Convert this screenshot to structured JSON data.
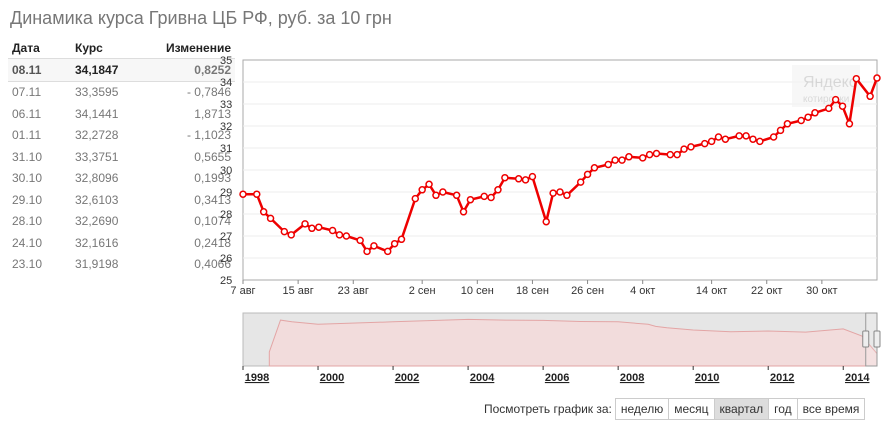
{
  "title": "Динамика курса Гривна ЦБ РФ, руб. за 10 грн",
  "table": {
    "headers": [
      "Дата",
      "Курс",
      "Изменение"
    ],
    "rows": [
      {
        "date": "08.11",
        "rate": "34,1847",
        "change": "0,8252"
      },
      {
        "date": "07.11",
        "rate": "33,3595",
        "change": "- 0,7846"
      },
      {
        "date": "06.11",
        "rate": "34,1441",
        "change": "1,8713"
      },
      {
        "date": "01.11",
        "rate": "32,2728",
        "change": "- 1,1023"
      },
      {
        "date": "31.10",
        "rate": "33,3751",
        "change": "0,5655"
      },
      {
        "date": "30.10",
        "rate": "32,8096",
        "change": "0,1993"
      },
      {
        "date": "29.10",
        "rate": "32,6103",
        "change": "0,3413"
      },
      {
        "date": "28.10",
        "rate": "32,2690",
        "change": "0,1074"
      },
      {
        "date": "24.10",
        "rate": "32,1616",
        "change": "0,2418"
      },
      {
        "date": "23.10",
        "rate": "31,9198",
        "change": "0,4066"
      }
    ]
  },
  "watermark": {
    "line1": "Яндекс",
    "line2": "котировки"
  },
  "period_bar": {
    "label": "Посмотреть график за:",
    "buttons": [
      "неделю",
      "месяц",
      "квартал",
      "год",
      "все время"
    ],
    "active": "квартал"
  },
  "colors": {
    "line": "#ee0000",
    "overview_fill": "#f2dcdc",
    "overview_line": "#e3a5a5"
  },
  "chart_data": [
    {
      "type": "line",
      "ylim": [
        25,
        35
      ],
      "yticks": [
        25,
        26,
        27,
        28,
        29,
        30,
        31,
        32,
        33,
        34,
        35
      ],
      "xlim": [
        0,
        92
      ],
      "xticks": [
        {
          "x": 0,
          "label": "7 авг"
        },
        {
          "x": 8,
          "label": "15 авг"
        },
        {
          "x": 16,
          "label": "23 авг"
        },
        {
          "x": 26,
          "label": "2 сен"
        },
        {
          "x": 34,
          "label": "10 сен"
        },
        {
          "x": 42,
          "label": "18 сен"
        },
        {
          "x": 50,
          "label": "26 сен"
        },
        {
          "x": 58,
          "label": "4 окт"
        },
        {
          "x": 68,
          "label": "14 окт"
        },
        {
          "x": 76,
          "label": "22 окт"
        },
        {
          "x": 84,
          "label": "30 окт"
        }
      ],
      "series": [
        {
          "x": [
            0,
            2,
            3,
            4,
            6,
            7,
            9,
            10,
            11,
            13,
            14,
            15,
            17,
            18,
            19,
            21,
            22,
            23,
            25,
            26,
            27,
            28,
            29,
            31,
            32,
            33,
            35,
            36,
            37,
            38,
            40,
            41,
            42,
            44,
            45,
            46,
            47,
            49,
            50,
            51,
            53,
            54,
            55,
            56,
            58,
            59,
            60,
            62,
            63,
            64,
            65,
            67,
            68,
            69,
            70,
            72,
            73,
            74,
            75,
            77,
            78,
            79,
            81,
            82,
            83,
            85,
            86,
            87,
            88,
            89,
            91,
            92
          ],
          "y": [
            28.9,
            28.9,
            28.1,
            27.8,
            27.2,
            27.05,
            27.55,
            27.35,
            27.4,
            27.25,
            27.05,
            27.0,
            26.8,
            26.3,
            26.55,
            26.3,
            26.65,
            26.85,
            28.7,
            29.1,
            29.35,
            28.85,
            29.0,
            28.85,
            28.1,
            28.65,
            28.8,
            28.75,
            29.1,
            29.65,
            29.6,
            29.55,
            29.7,
            27.65,
            28.95,
            29.0,
            28.85,
            29.45,
            29.8,
            30.1,
            30.25,
            30.45,
            30.45,
            30.6,
            30.55,
            30.7,
            30.75,
            30.7,
            30.7,
            30.95,
            31.05,
            31.2,
            31.3,
            31.5,
            31.4,
            31.55,
            31.55,
            31.4,
            31.3,
            31.5,
            31.8,
            32.1,
            32.25,
            32.4,
            32.6,
            32.8,
            33.2,
            32.9,
            32.1,
            34.15,
            33.35,
            34.18
          ]
        }
      ]
    },
    {
      "type": "area",
      "xlim": [
        1998,
        2014.9
      ],
      "xticks": [
        1998,
        2000,
        2002,
        2004,
        2006,
        2008,
        2010,
        2012,
        2014
      ],
      "selected_range": [
        2014.6,
        2014.9
      ],
      "series": [
        {
          "x": [
            1998.7,
            1999.0,
            1999.3,
            2000,
            2002,
            2004,
            2005,
            2006,
            2007,
            2008,
            2008.8,
            2009.0,
            2009.3,
            2010,
            2011,
            2012,
            2013,
            2014,
            2014.5,
            2014.9
          ],
          "y": [
            40,
            130,
            125,
            118,
            125,
            132,
            130,
            129,
            126,
            125,
            118,
            112,
            108,
            102,
            97,
            99,
            96,
            105,
            85,
            35
          ]
        }
      ]
    }
  ]
}
